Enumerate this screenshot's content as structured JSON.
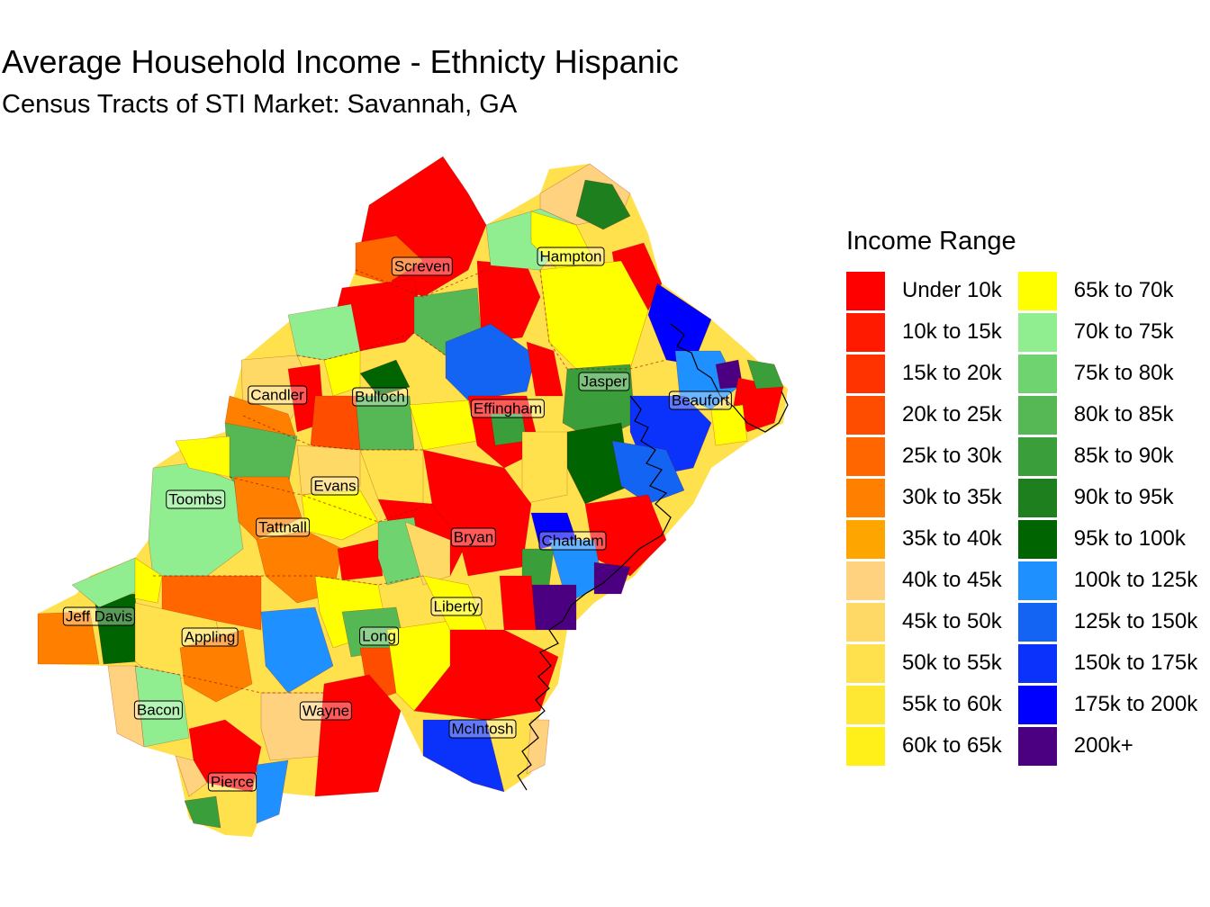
{
  "title": "Average Household Income - Ethnicty Hispanic",
  "subtitle": "Census Tracts of STI Market: Savannah, GA",
  "legend": {
    "title": "Income Range",
    "items": [
      {
        "label": "Under 10k",
        "color": "#FF0000"
      },
      {
        "label": "10k to 15k",
        "color": "#FF1A00"
      },
      {
        "label": "15k to 20k",
        "color": "#FF3300"
      },
      {
        "label": "20k to 25k",
        "color": "#FF4D00"
      },
      {
        "label": "25k to 30k",
        "color": "#FF6600"
      },
      {
        "label": "30k to 35k",
        "color": "#FF8000"
      },
      {
        "label": "35k to 40k",
        "color": "#FFA500"
      },
      {
        "label": "40k to 45k",
        "color": "#FFD27F"
      },
      {
        "label": "45k to 50k",
        "color": "#FFD966"
      },
      {
        "label": "50k to 55k",
        "color": "#FFE14D"
      },
      {
        "label": "55k to 60k",
        "color": "#FFE833"
      },
      {
        "label": "60k to 65k",
        "color": "#FFF01A"
      },
      {
        "label": "65k to 70k",
        "color": "#FFFF00"
      },
      {
        "label": "70k to 75k",
        "color": "#90EE90"
      },
      {
        "label": "75k to 80k",
        "color": "#6FD36F"
      },
      {
        "label": "80k to 85k",
        "color": "#55B855"
      },
      {
        "label": "85k to 90k",
        "color": "#3A9E3A"
      },
      {
        "label": "90k to 95k",
        "color": "#1E7F1E"
      },
      {
        "label": "95k to 100k",
        "color": "#006400"
      },
      {
        "label": "100k to 125k",
        "color": "#1E90FF"
      },
      {
        "label": "125k to 150k",
        "color": "#1464F4"
      },
      {
        "label": "150k to 175k",
        "color": "#0A32FA"
      },
      {
        "label": "175k to 200k",
        "color": "#0000FF"
      },
      {
        "label": "200k+",
        "color": "#4B0082"
      }
    ]
  },
  "counties": [
    "Screven",
    "Hampton",
    "Candler",
    "Bulloch",
    "Effingham",
    "Jasper",
    "Beaufort",
    "Toombs",
    "Evans",
    "Tattnall",
    "Bryan",
    "Chatham",
    "Jeff Davis",
    "Liberty",
    "Appling",
    "Long",
    "Bacon",
    "Wayne",
    "McIntosh",
    "Pierce"
  ]
}
